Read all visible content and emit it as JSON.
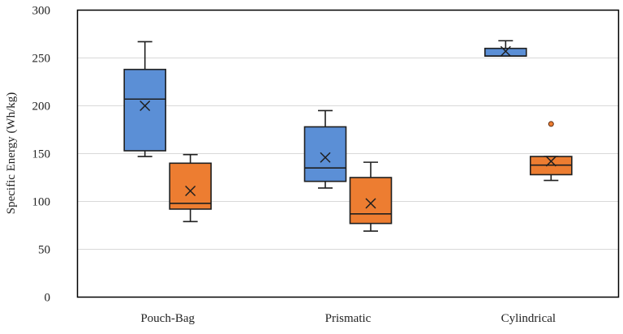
{
  "chart_data": {
    "type": "box",
    "title": "",
    "xlabel": "",
    "ylabel": "Specific Energy (Wh/kg)",
    "ylim": [
      0,
      300
    ],
    "yticks": [
      0,
      50,
      100,
      150,
      200,
      250,
      300
    ],
    "grid": true,
    "legend": "none",
    "categories": [
      "Pouch-Bag",
      "Prismatic",
      "Cylindrical"
    ],
    "series": [
      {
        "color": "#5B8FD6",
        "boxes": [
          {
            "min": 147,
            "q1": 153,
            "median": 207,
            "q3": 238,
            "max": 267,
            "mean": 200,
            "outliers": []
          },
          {
            "min": 114,
            "q1": 121,
            "median": 135,
            "q3": 178,
            "max": 195,
            "mean": 146,
            "outliers": []
          },
          {
            "min": 252,
            "q1": 252,
            "median": 252,
            "q3": 260,
            "max": 268,
            "mean": 257,
            "outliers": []
          }
        ]
      },
      {
        "color": "#ED7D31",
        "boxes": [
          {
            "min": 79,
            "q1": 92,
            "median": 98,
            "q3": 140,
            "max": 149,
            "mean": 111,
            "outliers": []
          },
          {
            "min": 69,
            "q1": 77,
            "median": 87,
            "q3": 125,
            "max": 141,
            "mean": 98,
            "outliers": []
          },
          {
            "min": 122,
            "q1": 128,
            "median": 138,
            "q3": 147,
            "max": 147,
            "mean": 142,
            "outliers": [
              181
            ]
          }
        ]
      }
    ]
  }
}
